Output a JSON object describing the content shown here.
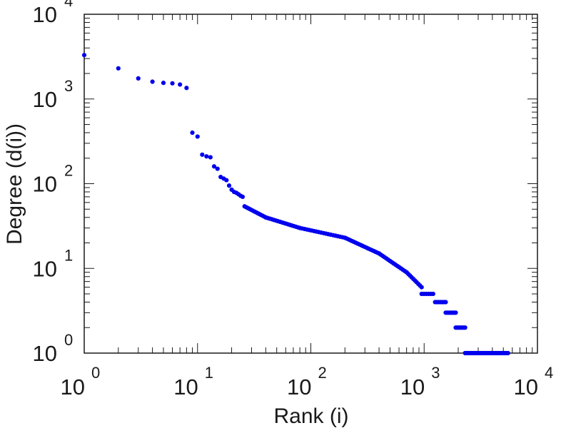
{
  "chart_data": {
    "type": "scatter",
    "xlabel": "Rank (i)",
    "ylabel": "Degree (d(i))",
    "x_scale": "log",
    "y_scale": "log",
    "xlim": [
      1,
      10000
    ],
    "ylim": [
      1,
      10000
    ],
    "grid": false,
    "legend": "none",
    "marker_color": "#0000ee",
    "axis_color": "#1a1a1a",
    "x_ticks": [
      {
        "base": "10",
        "exp": "0"
      },
      {
        "base": "10",
        "exp": "1"
      },
      {
        "base": "10",
        "exp": "2"
      },
      {
        "base": "10",
        "exp": "3"
      },
      {
        "base": "10",
        "exp": "4"
      }
    ],
    "y_ticks": [
      {
        "base": "10",
        "exp": "0"
      },
      {
        "base": "10",
        "exp": "1"
      },
      {
        "base": "10",
        "exp": "2"
      },
      {
        "base": "10",
        "exp": "3"
      },
      {
        "base": "10",
        "exp": "4"
      }
    ],
    "segments": [
      {
        "x": [
          1,
          2,
          3,
          4,
          5,
          6,
          7,
          8
        ],
        "y": [
          3300,
          2300,
          1750,
          1600,
          1550,
          1530,
          1480,
          1350
        ]
      },
      {
        "x": [
          9,
          10,
          11,
          12,
          13,
          14,
          15,
          16,
          17,
          18,
          19,
          20,
          21,
          22,
          23,
          24,
          25
        ],
        "y": [
          400,
          360,
          220,
          210,
          205,
          160,
          150,
          120,
          115,
          110,
          95,
          85,
          80,
          78,
          75,
          72,
          70
        ]
      },
      {
        "x_start": 26,
        "x_end": 40,
        "n": 14,
        "y_start": 54,
        "y_end": 40
      },
      {
        "x_start": 40,
        "x_end": 80,
        "n": 18,
        "y_start": 40,
        "y_end": 30
      },
      {
        "x_start": 80,
        "x_end": 200,
        "n": 20,
        "y_start": 30,
        "y_end": 23
      },
      {
        "x_start": 200,
        "x_end": 400,
        "n": 20,
        "y_start": 23,
        "y_end": 15
      },
      {
        "x_start": 400,
        "x_end": 700,
        "n": 16,
        "y_start": 15,
        "y_end": 9
      },
      {
        "x_start": 700,
        "x_end": 950,
        "n": 10,
        "y_start": 9,
        "y_end": 6
      },
      {
        "x_start": 950,
        "x_end": 1200,
        "n": 6,
        "y": 5
      },
      {
        "x_start": 1250,
        "x_end": 1550,
        "n": 7,
        "y": 4
      },
      {
        "x_start": 1550,
        "x_end": 1900,
        "n": 8,
        "y": 3
      },
      {
        "x_start": 1900,
        "x_end": 2300,
        "n": 8,
        "y": 2
      },
      {
        "x_start": 2300,
        "x_end": 5500,
        "n": 30,
        "y": 1
      }
    ]
  }
}
